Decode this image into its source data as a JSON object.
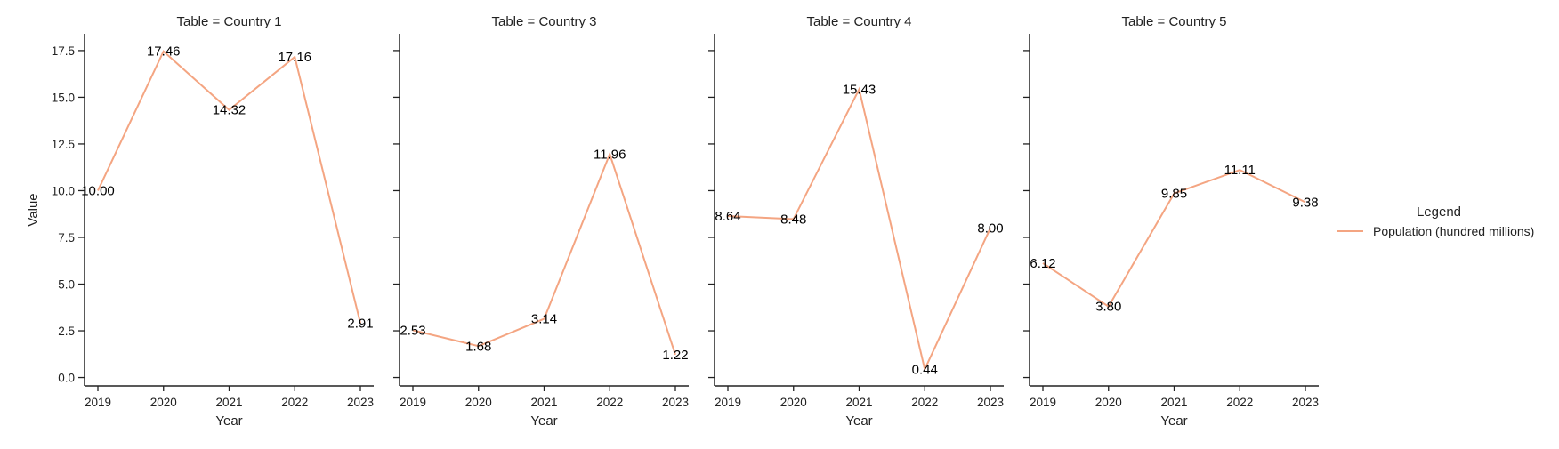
{
  "chart_data": {
    "type": "line",
    "ylabel": "Value",
    "xlabel": "Year",
    "x": [
      "2019",
      "2020",
      "2021",
      "2022",
      "2023"
    ],
    "ylim": [
      -0.45,
      18.4
    ],
    "yticks": [
      "0.0",
      "2.5",
      "5.0",
      "7.5",
      "10.0",
      "12.5",
      "15.0",
      "17.5"
    ],
    "sharey": true,
    "grid": false,
    "line_color": "#f4a582",
    "legend": {
      "title": "Legend",
      "placement": "right",
      "entries": [
        "Population (hundred millions)"
      ]
    },
    "panels": [
      {
        "title": "Table = Country 1",
        "series": [
          {
            "name": "Population (hundred millions)",
            "values": [
              10.0,
              17.46,
              14.32,
              17.16,
              2.91
            ],
            "labels": [
              "10.00",
              "17.46",
              "14.32",
              "17.16",
              "2.91"
            ]
          }
        ]
      },
      {
        "title": "Table = Country 3",
        "series": [
          {
            "name": "Population (hundred millions)",
            "values": [
              2.53,
              1.68,
              3.14,
              11.96,
              1.22
            ],
            "labels": [
              "2.53",
              "1.68",
              "3.14",
              "11.96",
              "1.22"
            ]
          }
        ]
      },
      {
        "title": "Table = Country 4",
        "series": [
          {
            "name": "Population (hundred millions)",
            "values": [
              8.64,
              8.48,
              15.43,
              0.44,
              8.0
            ],
            "labels": [
              "8.64",
              "8.48",
              "15.43",
              "0.44",
              "8.00"
            ]
          }
        ]
      },
      {
        "title": "Table = Country 5",
        "series": [
          {
            "name": "Population (hundred millions)",
            "values": [
              6.12,
              3.8,
              9.85,
              11.11,
              9.38
            ],
            "labels": [
              "6.12",
              "3.80",
              "9.85",
              "11.11",
              "9.38"
            ]
          }
        ]
      }
    ]
  }
}
